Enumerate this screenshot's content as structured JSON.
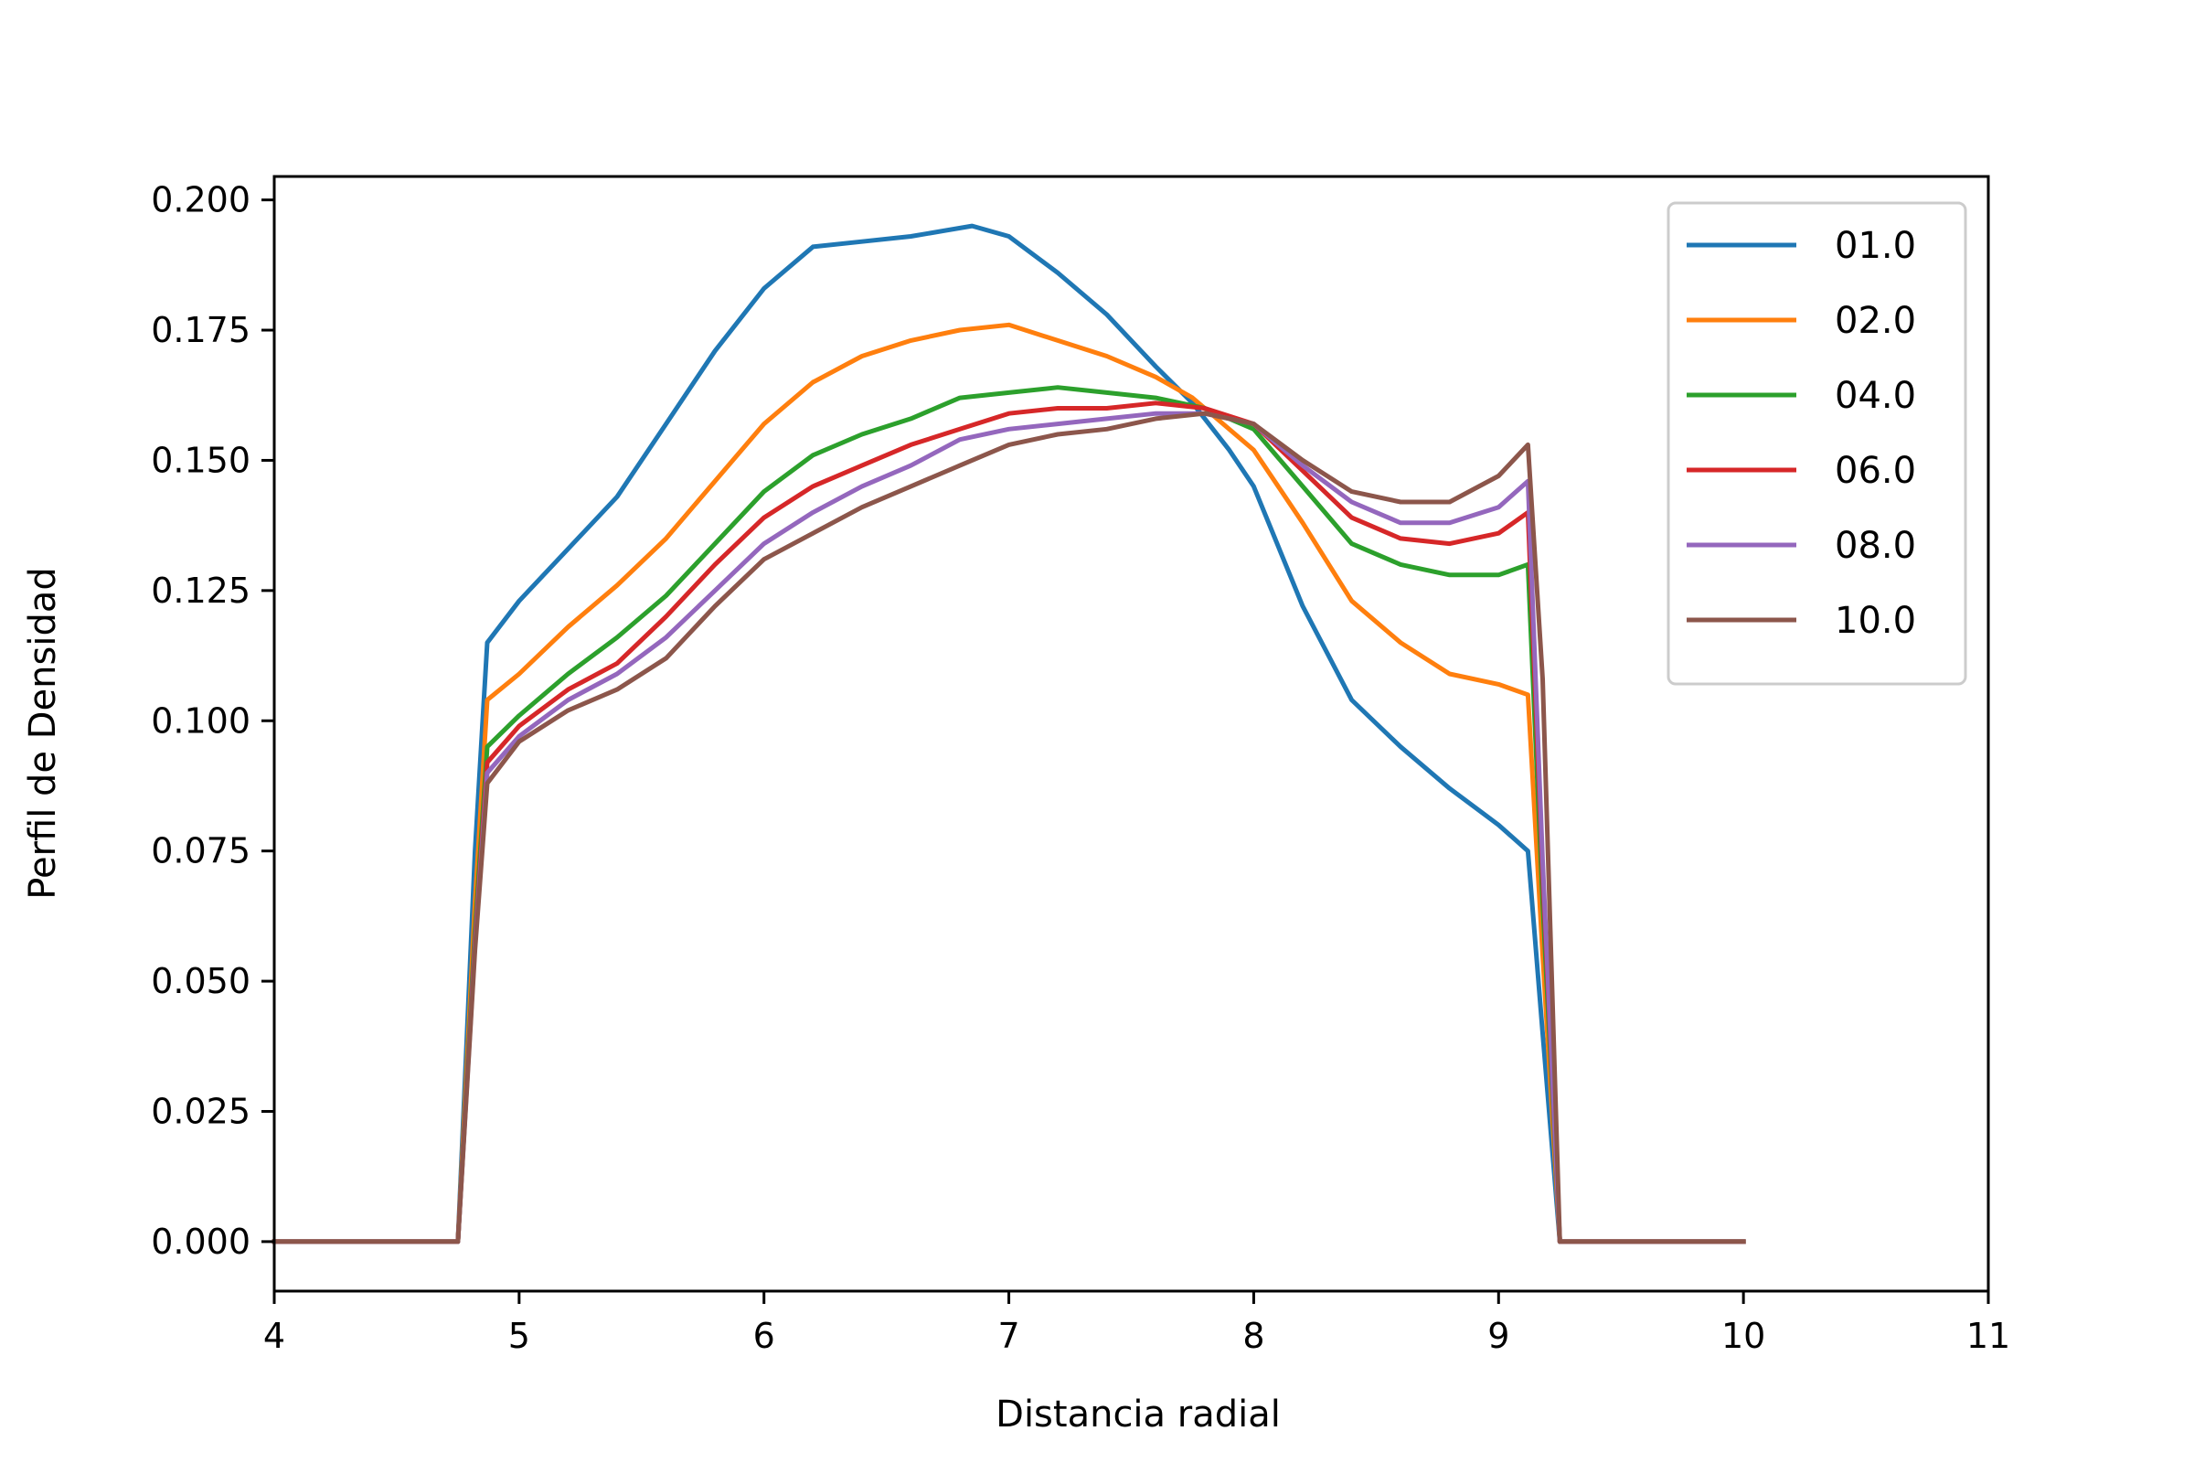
{
  "chart_data": {
    "type": "line",
    "title": "",
    "xlabel": "Distancia radial",
    "ylabel": "Perfil de Densidad",
    "xlim": [
      4,
      11
    ],
    "ylim": [
      -0.0095,
      0.2045
    ],
    "xticks": [
      4,
      5,
      6,
      7,
      8,
      9,
      10,
      11
    ],
    "xtick_labels": [
      "4",
      "5",
      "6",
      "7",
      "8",
      "9",
      "10",
      "11"
    ],
    "yticks": [
      0,
      0.025,
      0.05,
      0.075,
      0.1,
      0.125,
      0.15,
      0.175,
      0.2
    ],
    "ytick_labels": [
      "0.000",
      "0.025",
      "0.050",
      "0.075",
      "0.100",
      "0.125",
      "0.150",
      "0.175",
      "0.200"
    ],
    "grid": false,
    "legend_position": "top-right",
    "series": [
      {
        "name": "01.0",
        "color": "#1f77b4",
        "x": [
          4.0,
          4.75,
          4.82,
          4.87,
          5.0,
          5.2,
          5.4,
          5.6,
          5.8,
          6.0,
          6.2,
          6.4,
          6.6,
          6.85,
          7.0,
          7.2,
          7.4,
          7.6,
          7.75,
          7.9,
          8.0,
          8.2,
          8.4,
          8.6,
          8.8,
          9.0,
          9.12,
          9.18,
          9.25,
          10.0
        ],
        "y": [
          0.0,
          0.0,
          0.075,
          0.115,
          0.123,
          0.133,
          0.143,
          0.157,
          0.171,
          0.183,
          0.191,
          0.192,
          0.193,
          0.195,
          0.193,
          0.186,
          0.178,
          0.168,
          0.161,
          0.152,
          0.145,
          0.122,
          0.104,
          0.095,
          0.087,
          0.08,
          0.075,
          0.04,
          0.0,
          0.0
        ]
      },
      {
        "name": "02.0",
        "color": "#ff7f0e",
        "x": [
          4.0,
          4.75,
          4.82,
          4.87,
          5.0,
          5.2,
          5.4,
          5.6,
          5.8,
          6.0,
          6.2,
          6.4,
          6.6,
          6.8,
          7.0,
          7.2,
          7.4,
          7.6,
          7.75,
          8.0,
          8.2,
          8.4,
          8.6,
          8.8,
          9.0,
          9.12,
          9.18,
          9.25,
          10.0
        ],
        "y": [
          0.0,
          0.0,
          0.065,
          0.104,
          0.109,
          0.118,
          0.126,
          0.135,
          0.146,
          0.157,
          0.165,
          0.17,
          0.173,
          0.175,
          0.176,
          0.173,
          0.17,
          0.166,
          0.162,
          0.152,
          0.138,
          0.123,
          0.115,
          0.109,
          0.107,
          0.105,
          0.055,
          0.0,
          0.0
        ]
      },
      {
        "name": "04.0",
        "color": "#2ca02c",
        "x": [
          4.0,
          4.75,
          4.82,
          4.87,
          5.0,
          5.2,
          5.4,
          5.6,
          5.8,
          6.0,
          6.2,
          6.4,
          6.6,
          6.8,
          7.0,
          7.2,
          7.4,
          7.6,
          7.8,
          8.0,
          8.2,
          8.4,
          8.6,
          8.8,
          9.0,
          9.12,
          9.18,
          9.25,
          10.0
        ],
        "y": [
          0.0,
          0.0,
          0.06,
          0.095,
          0.101,
          0.109,
          0.116,
          0.124,
          0.134,
          0.144,
          0.151,
          0.155,
          0.158,
          0.162,
          0.163,
          0.164,
          0.163,
          0.162,
          0.16,
          0.156,
          0.145,
          0.134,
          0.13,
          0.128,
          0.128,
          0.13,
          0.065,
          0.0,
          0.0
        ]
      },
      {
        "name": "06.0",
        "color": "#d62728",
        "x": [
          4.0,
          4.75,
          4.82,
          4.87,
          5.0,
          5.2,
          5.4,
          5.6,
          5.8,
          6.0,
          6.2,
          6.4,
          6.6,
          6.8,
          7.0,
          7.2,
          7.4,
          7.6,
          7.8,
          8.0,
          8.2,
          8.4,
          8.6,
          8.8,
          9.0,
          9.12,
          9.18,
          9.25,
          10.0
        ],
        "y": [
          0.0,
          0.0,
          0.058,
          0.092,
          0.099,
          0.106,
          0.111,
          0.12,
          0.13,
          0.139,
          0.145,
          0.149,
          0.153,
          0.156,
          0.159,
          0.16,
          0.16,
          0.161,
          0.16,
          0.157,
          0.148,
          0.139,
          0.135,
          0.134,
          0.136,
          0.14,
          0.07,
          0.0,
          0.0
        ]
      },
      {
        "name": "08.0",
        "color": "#9467bd",
        "x": [
          4.0,
          4.75,
          4.82,
          4.87,
          5.0,
          5.2,
          5.4,
          5.6,
          5.8,
          6.0,
          6.2,
          6.4,
          6.6,
          6.8,
          7.0,
          7.2,
          7.4,
          7.6,
          7.8,
          8.0,
          8.2,
          8.4,
          8.6,
          8.8,
          9.0,
          9.12,
          9.18,
          9.25,
          10.0
        ],
        "y": [
          0.0,
          0.0,
          0.057,
          0.09,
          0.097,
          0.104,
          0.109,
          0.116,
          0.125,
          0.134,
          0.14,
          0.145,
          0.149,
          0.154,
          0.156,
          0.157,
          0.158,
          0.159,
          0.159,
          0.157,
          0.149,
          0.142,
          0.138,
          0.138,
          0.141,
          0.146,
          0.073,
          0.0,
          0.0
        ]
      },
      {
        "name": "10.0",
        "color": "#8c564b",
        "x": [
          4.0,
          4.75,
          4.82,
          4.87,
          5.0,
          5.2,
          5.4,
          5.6,
          5.8,
          6.0,
          6.2,
          6.4,
          6.6,
          6.8,
          7.0,
          7.2,
          7.4,
          7.6,
          7.8,
          8.0,
          8.2,
          8.4,
          8.6,
          8.8,
          9.0,
          9.12,
          9.18,
          9.25,
          10.0
        ],
        "y": [
          0.0,
          0.0,
          0.056,
          0.088,
          0.096,
          0.102,
          0.106,
          0.112,
          0.122,
          0.131,
          0.136,
          0.141,
          0.145,
          0.149,
          0.153,
          0.155,
          0.156,
          0.158,
          0.159,
          0.157,
          0.15,
          0.144,
          0.142,
          0.142,
          0.147,
          0.153,
          0.108,
          0.0,
          0.0
        ]
      }
    ]
  }
}
